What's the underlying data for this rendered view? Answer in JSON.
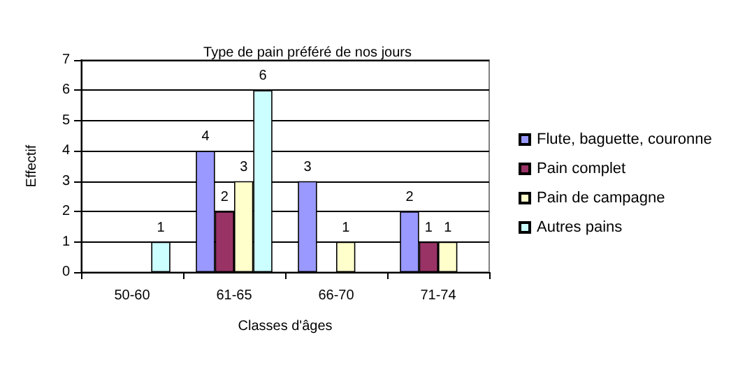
{
  "chart_data": {
    "type": "bar",
    "title": "Type de pain préféré de nos jours",
    "xlabel": "Classes d'âges",
    "ylabel": "Effectif",
    "categories": [
      "50-60",
      "61-65",
      "66-70",
      "71-74"
    ],
    "series": [
      {
        "name": "Flute, baguette, couronne",
        "color": "#9999ff",
        "values": [
          0,
          4,
          3,
          2
        ],
        "value_labels": [
          null,
          "4",
          "3",
          "2"
        ]
      },
      {
        "name": "Pain complet",
        "color": "#993366",
        "values": [
          0,
          2,
          0,
          1
        ],
        "value_labels": [
          null,
          "2",
          null,
          "1"
        ]
      },
      {
        "name": "Pain de campagne",
        "color": "#ffffcc",
        "values": [
          0,
          3,
          1,
          1
        ],
        "value_labels": [
          null,
          "3",
          "1",
          "1"
        ]
      },
      {
        "name": "Autres pains",
        "color": "#ccffff",
        "values": [
          1,
          6,
          0,
          0
        ],
        "value_labels": [
          "1",
          "6",
          null,
          null
        ]
      }
    ],
    "ylim": [
      0,
      7
    ],
    "yticks": [
      0,
      1,
      2,
      3,
      4,
      5,
      6,
      7
    ],
    "grid": "y",
    "legend": "right"
  }
}
